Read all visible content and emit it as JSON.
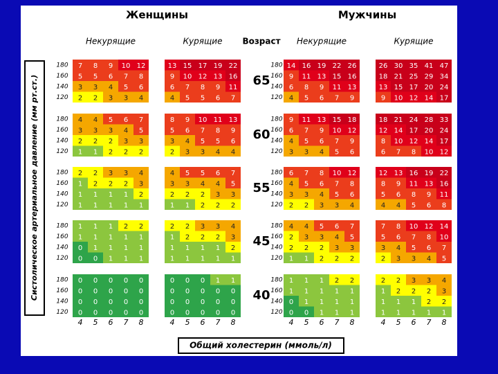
{
  "titles": {
    "women": "Женщины",
    "men": "Мужчины",
    "age": "Возраст"
  },
  "panels": [
    {
      "label": "Некурящие"
    },
    {
      "label": "Курящие"
    },
    {
      "label": "Некурящие"
    },
    {
      "label": "Курящие"
    }
  ],
  "y_label": "Систолическое артериальное давление (мм рт.ст.)",
  "x_label": "Общий холестерин (ммоль/л)",
  "bp_levels": [
    180,
    160,
    140,
    120
  ],
  "cholesterol": [
    4,
    5,
    6,
    7,
    8
  ],
  "color_scale": [
    {
      "min": 0,
      "color": "#2ea44a",
      "text": "#ffffff"
    },
    {
      "min": 1,
      "color": "#8cc63e",
      "text": "#ffffff"
    },
    {
      "min": 2,
      "color": "#ffff00",
      "text": "#222222"
    },
    {
      "min": 3,
      "color": "#f5a700",
      "text": "#222222"
    },
    {
      "min": 5,
      "color": "#eb3d1c",
      "text": "#ffffff"
    },
    {
      "min": 10,
      "color": "#e0001a",
      "text": "#ffffff"
    },
    {
      "min": 15,
      "color": "#c8001a",
      "text": "#ffffff"
    }
  ],
  "groups": [
    {
      "age": 65,
      "panels": [
        [
          [
            7,
            8,
            9,
            10,
            12
          ],
          [
            5,
            5,
            6,
            7,
            8
          ],
          [
            3,
            3,
            4,
            5,
            6
          ],
          [
            2,
            2,
            3,
            3,
            4
          ]
        ],
        [
          [
            13,
            15,
            17,
            19,
            22
          ],
          [
            9,
            10,
            12,
            13,
            16
          ],
          [
            6,
            7,
            8,
            9,
            11
          ],
          [
            4,
            5,
            5,
            6,
            7
          ]
        ],
        [
          [
            14,
            16,
            19,
            22,
            26
          ],
          [
            9,
            11,
            13,
            15,
            16
          ],
          [
            6,
            8,
            9,
            11,
            13
          ],
          [
            4,
            5,
            6,
            7,
            9
          ]
        ],
        [
          [
            26,
            30,
            35,
            41,
            47
          ],
          [
            18,
            21,
            25,
            29,
            34
          ],
          [
            13,
            15,
            17,
            20,
            24
          ],
          [
            9,
            10,
            12,
            14,
            17
          ]
        ]
      ]
    },
    {
      "age": 60,
      "panels": [
        [
          [
            4,
            4,
            5,
            6,
            7
          ],
          [
            3,
            3,
            3,
            4,
            5
          ],
          [
            2,
            2,
            2,
            3,
            3
          ],
          [
            1,
            1,
            2,
            2,
            2
          ]
        ],
        [
          [
            8,
            9,
            10,
            11,
            13
          ],
          [
            5,
            6,
            7,
            8,
            9
          ],
          [
            3,
            4,
            5,
            5,
            6
          ],
          [
            2,
            3,
            3,
            4,
            4
          ]
        ],
        [
          [
            9,
            11,
            13,
            15,
            18
          ],
          [
            6,
            7,
            9,
            10,
            12
          ],
          [
            4,
            5,
            6,
            7,
            9
          ],
          [
            3,
            3,
            4,
            5,
            6
          ]
        ],
        [
          [
            18,
            21,
            24,
            28,
            33
          ],
          [
            12,
            14,
            17,
            20,
            24
          ],
          [
            8,
            10,
            12,
            14,
            17
          ],
          [
            6,
            7,
            8,
            10,
            12
          ]
        ]
      ]
    },
    {
      "age": 55,
      "panels": [
        [
          [
            2,
            2,
            3,
            3,
            4
          ],
          [
            1,
            2,
            2,
            2,
            3
          ],
          [
            1,
            1,
            1,
            1,
            2
          ],
          [
            1,
            1,
            1,
            1,
            1
          ]
        ],
        [
          [
            4,
            5,
            5,
            6,
            7
          ],
          [
            3,
            3,
            4,
            4,
            5
          ],
          [
            2,
            2,
            2,
            3,
            3
          ],
          [
            1,
            1,
            2,
            2,
            2
          ]
        ],
        [
          [
            6,
            7,
            8,
            10,
            12
          ],
          [
            4,
            5,
            6,
            7,
            8
          ],
          [
            3,
            3,
            4,
            5,
            6
          ],
          [
            2,
            2,
            3,
            3,
            4
          ]
        ],
        [
          [
            12,
            13,
            16,
            19,
            22
          ],
          [
            8,
            9,
            11,
            13,
            16
          ],
          [
            5,
            6,
            8,
            9,
            11
          ],
          [
            4,
            4,
            5,
            6,
            8
          ]
        ]
      ]
    },
    {
      "age": 45,
      "panels": [
        [
          [
            1,
            1,
            1,
            2,
            2
          ],
          [
            1,
            1,
            1,
            1,
            1
          ],
          [
            0,
            1,
            1,
            1,
            1
          ],
          [
            0,
            0,
            1,
            1,
            1
          ]
        ],
        [
          [
            2,
            2,
            3,
            3,
            4
          ],
          [
            1,
            2,
            2,
            2,
            3
          ],
          [
            1,
            1,
            1,
            1,
            2
          ],
          [
            1,
            1,
            1,
            1,
            1
          ]
        ],
        [
          [
            4,
            4,
            5,
            6,
            7
          ],
          [
            2,
            3,
            3,
            4,
            5
          ],
          [
            2,
            2,
            2,
            3,
            3
          ],
          [
            1,
            1,
            2,
            2,
            2
          ]
        ],
        [
          [
            7,
            8,
            10,
            12,
            14
          ],
          [
            5,
            6,
            7,
            8,
            10
          ],
          [
            3,
            4,
            5,
            6,
            7
          ],
          [
            2,
            3,
            3,
            4,
            5
          ]
        ]
      ]
    },
    {
      "age": 40,
      "panels": [
        [
          [
            0,
            0,
            0,
            0,
            0
          ],
          [
            0,
            0,
            0,
            0,
            0
          ],
          [
            0,
            0,
            0,
            0,
            0
          ],
          [
            0,
            0,
            0,
            0,
            0
          ]
        ],
        [
          [
            0,
            0,
            0,
            1,
            1
          ],
          [
            0,
            0,
            0,
            0,
            0
          ],
          [
            0,
            0,
            0,
            0,
            0
          ],
          [
            0,
            0,
            0,
            0,
            0
          ]
        ],
        [
          [
            1,
            1,
            1,
            2,
            2
          ],
          [
            1,
            1,
            1,
            1,
            1
          ],
          [
            0,
            1,
            1,
            1,
            1
          ],
          [
            0,
            0,
            1,
            1,
            1
          ]
        ],
        [
          [
            2,
            2,
            3,
            3,
            4
          ],
          [
            1,
            2,
            2,
            2,
            3
          ],
          [
            1,
            1,
            1,
            2,
            2
          ],
          [
            1,
            1,
            1,
            1,
            1
          ]
        ]
      ]
    }
  ]
}
